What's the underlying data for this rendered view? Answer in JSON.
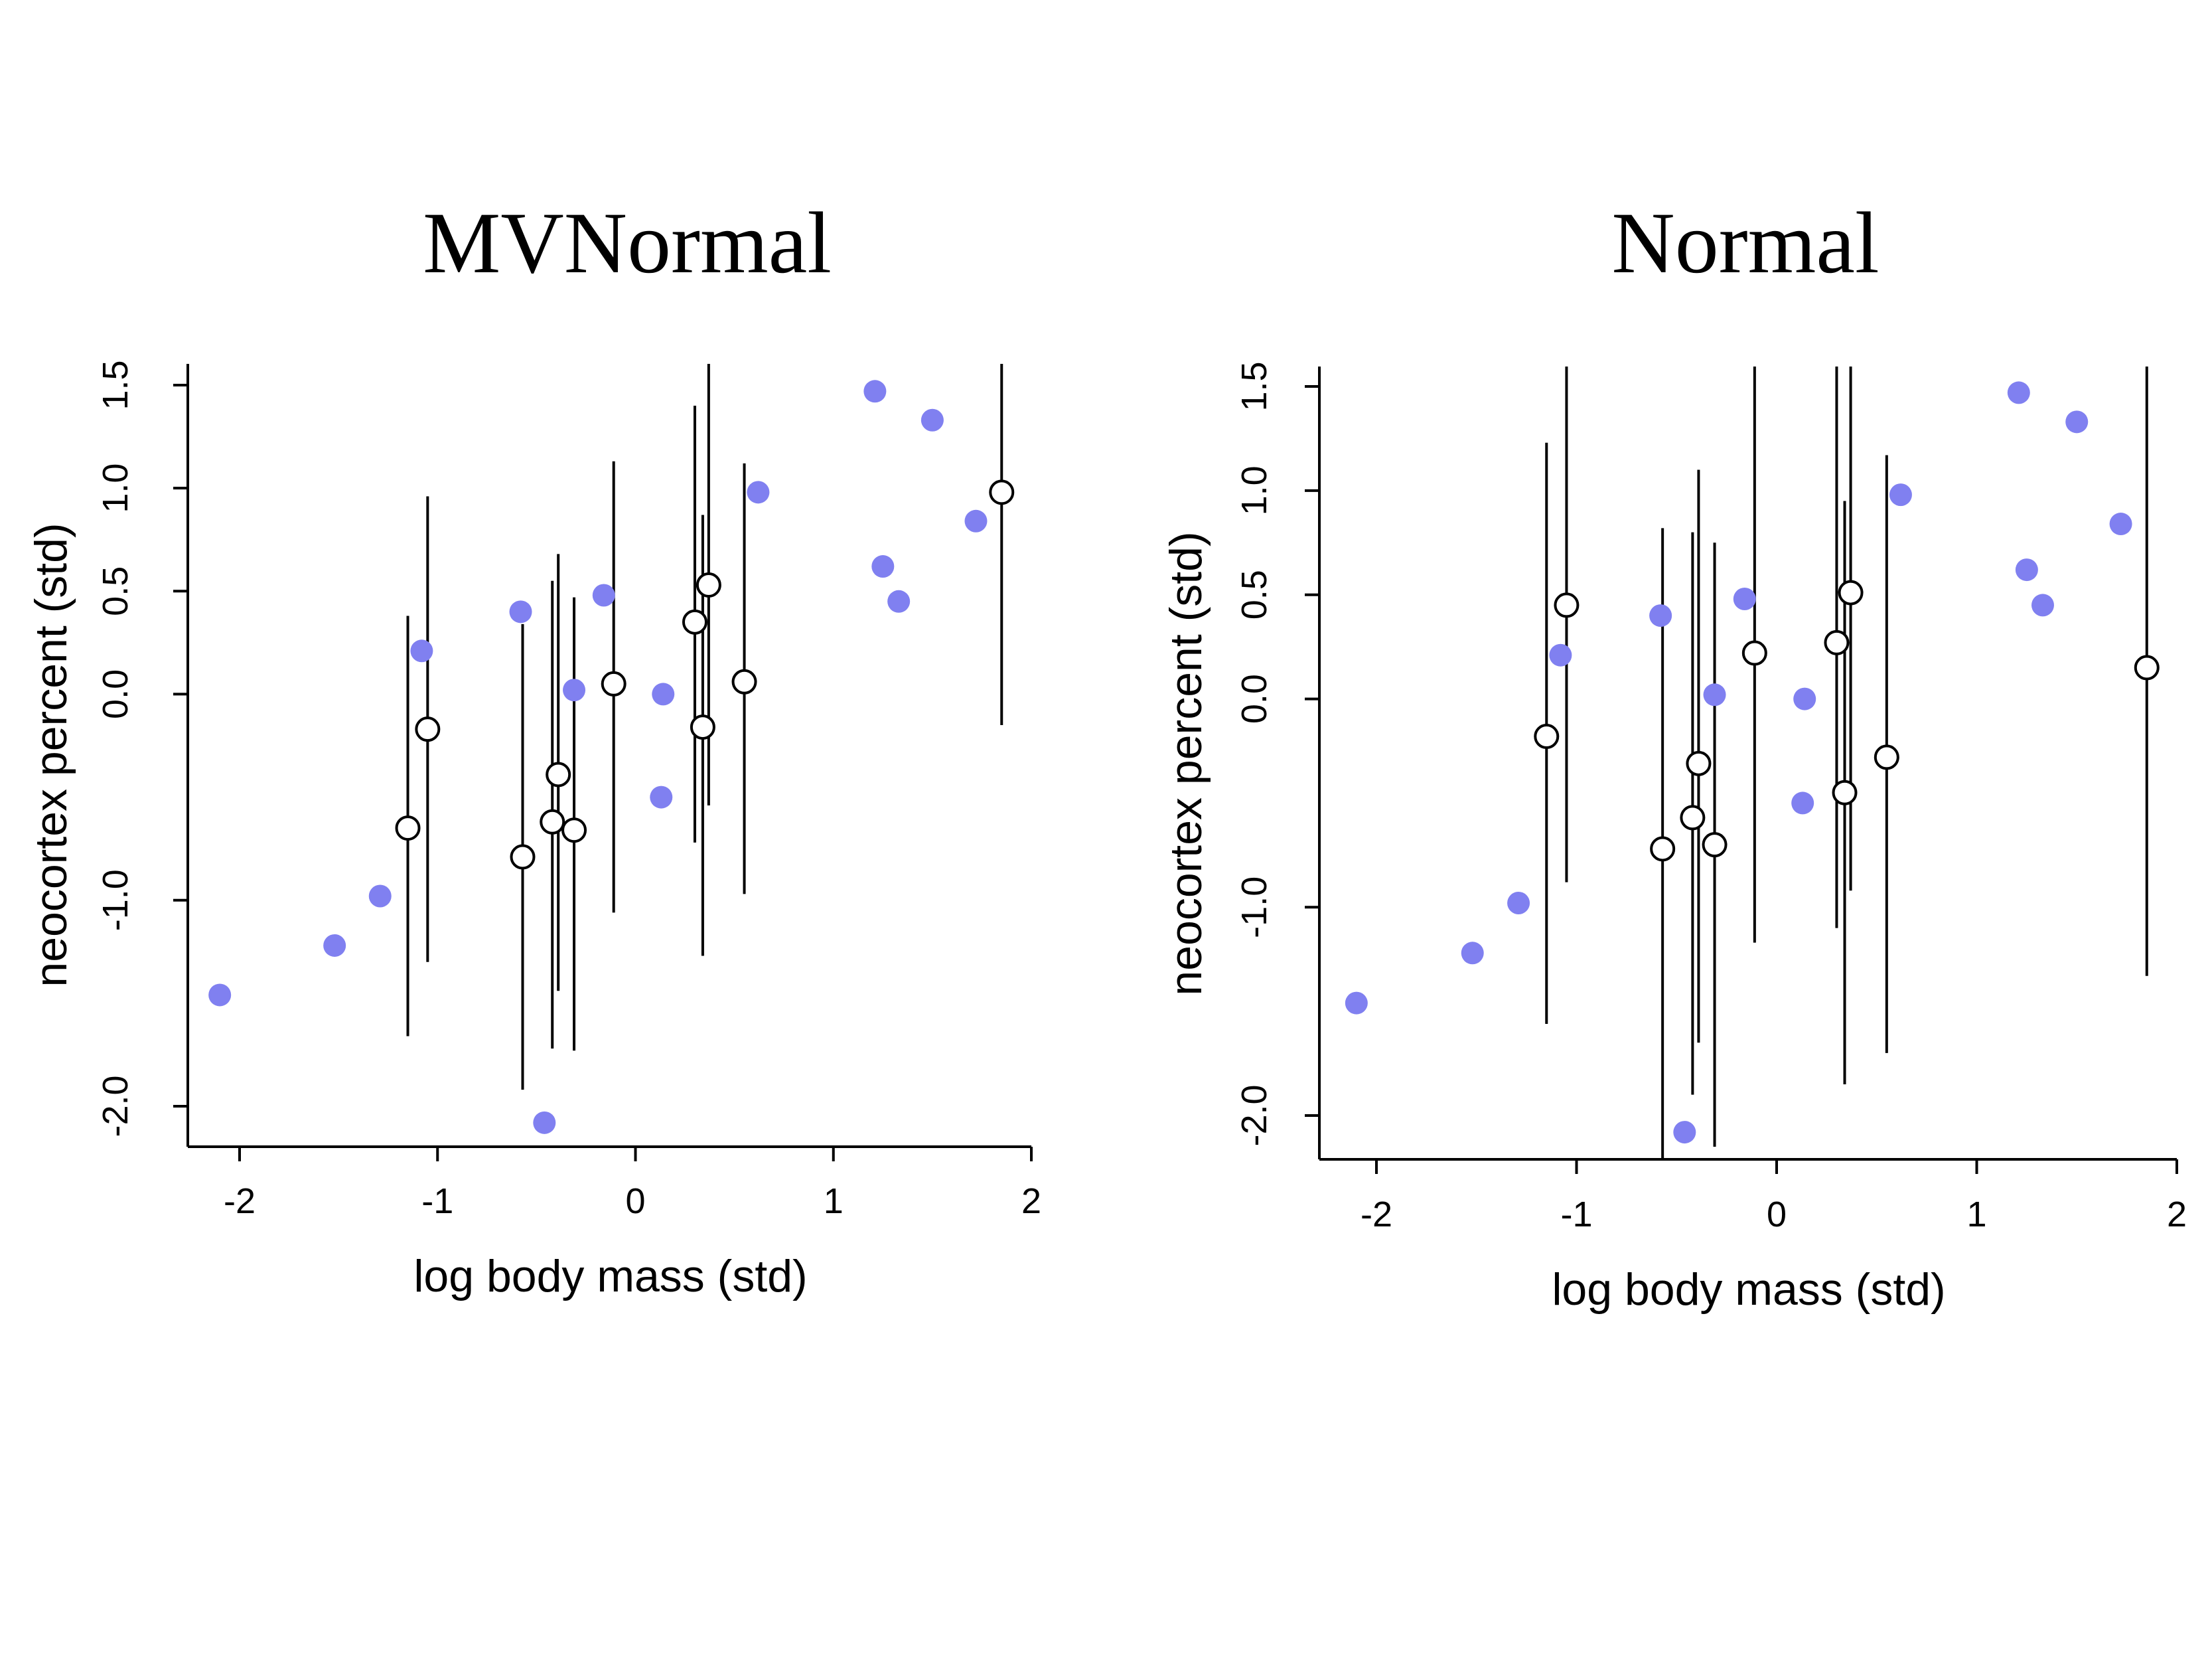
{
  "colors": {
    "observed": "#8080f0",
    "imputed": "#000000"
  },
  "chart_data": [
    {
      "type": "scatter",
      "title": "MVNormal",
      "xlabel": "log body mass (std)",
      "ylabel": "neocortex percent (std)",
      "xlim": [
        -2.2,
        2
      ],
      "ylim": [
        -2.2,
        1.6
      ],
      "xticks": [
        -2,
        -1,
        0,
        1,
        2
      ],
      "xtick_labels": [
        "-2",
        "-1",
        "0",
        "1",
        "2"
      ],
      "yticks": [
        -2.0,
        -1.0,
        0.0,
        0.5,
        1.0,
        1.5
      ],
      "ytick_labels": [
        "-2.0",
        "-1.0",
        "0.0",
        "0.5",
        "1.0",
        "1.5"
      ],
      "grid": false,
      "observed": {
        "x": [
          -2.1,
          -1.52,
          -1.29,
          -1.08,
          -0.58,
          -0.46,
          -0.31,
          -0.16,
          0.13,
          0.14,
          0.62,
          1.21,
          1.25,
          1.33,
          1.5,
          1.72
        ],
        "y": [
          -1.46,
          -1.22,
          -0.98,
          0.21,
          0.4,
          -2.08,
          0.02,
          0.48,
          -0.5,
          0.0,
          0.98,
          1.47,
          0.62,
          0.45,
          1.33,
          0.84
        ]
      },
      "imputed": {
        "x": [
          -1.15,
          -1.05,
          -0.57,
          -0.42,
          -0.39,
          -0.31,
          -0.11,
          0.3,
          0.34,
          0.37,
          0.55,
          1.85
        ],
        "y": [
          -0.65,
          -0.17,
          -0.79,
          -0.62,
          -0.39,
          -0.66,
          0.05,
          0.35,
          -0.16,
          0.53,
          0.06,
          0.98
        ],
        "lower": [
          -1.66,
          -1.3,
          -1.92,
          -1.72,
          -1.44,
          -1.73,
          -1.06,
          -0.72,
          -1.27,
          -0.54,
          -0.97,
          -0.15
        ],
        "upper": [
          0.38,
          0.96,
          0.34,
          0.55,
          0.68,
          0.47,
          1.13,
          1.4,
          0.87,
          1.62,
          1.12,
          1.62
        ]
      }
    },
    {
      "type": "scatter",
      "title": "Normal",
      "xlabel": "log body mass (std)",
      "ylabel": "neocortex percent (std)",
      "xlim": [
        -2.2,
        2
      ],
      "ylim": [
        -2.2,
        1.6
      ],
      "xticks": [
        -2,
        -1,
        0,
        1,
        2
      ],
      "xtick_labels": [
        "-2",
        "-1",
        "0",
        "1",
        "2"
      ],
      "yticks": [
        -2.0,
        -1.0,
        0.0,
        0.5,
        1.0,
        1.5
      ],
      "ytick_labels": [
        "-2.0",
        "-1.0",
        "0.0",
        "0.5",
        "1.0",
        "1.5"
      ],
      "grid": false,
      "observed": {
        "x": [
          -2.1,
          -1.52,
          -1.29,
          -1.08,
          -0.58,
          -0.46,
          -0.31,
          -0.16,
          0.13,
          0.14,
          0.62,
          1.21,
          1.25,
          1.33,
          1.5,
          1.72
        ],
        "y": [
          -1.46,
          -1.22,
          -0.98,
          0.21,
          0.4,
          -2.08,
          0.02,
          0.48,
          -0.5,
          0.0,
          0.98,
          1.47,
          0.62,
          0.45,
          1.33,
          0.84
        ]
      },
      "imputed": {
        "x": [
          -1.15,
          -1.05,
          -0.57,
          -0.42,
          -0.39,
          -0.31,
          -0.11,
          0.3,
          0.34,
          0.37,
          0.55,
          1.85
        ],
        "y": [
          -0.18,
          0.45,
          -0.72,
          -0.57,
          -0.31,
          -0.7,
          0.22,
          0.27,
          -0.45,
          0.51,
          -0.28,
          0.15
        ],
        "lower": [
          -1.56,
          -0.88,
          -2.3,
          -1.9,
          -1.65,
          -2.15,
          -1.17,
          -1.1,
          -1.85,
          -0.92,
          -1.7,
          -1.33
        ],
        "upper": [
          1.23,
          1.6,
          0.82,
          0.8,
          1.1,
          0.75,
          1.6,
          1.6,
          0.95,
          1.6,
          1.17,
          1.6
        ]
      }
    }
  ]
}
